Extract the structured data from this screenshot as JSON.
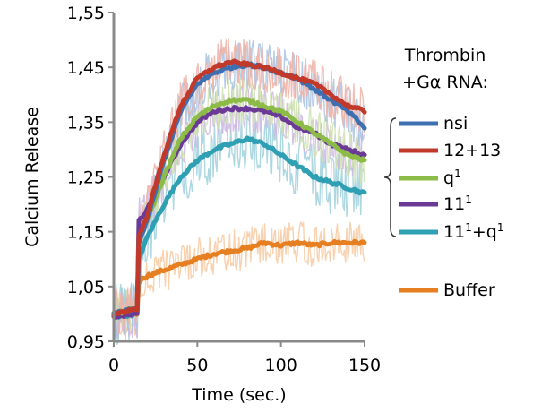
{
  "chart_data": {
    "type": "line",
    "xlabel": "Time (sec.)",
    "ylabel": "Calcium Release",
    "xlim": [
      0,
      150
    ],
    "ylim": [
      0.95,
      1.55
    ],
    "x_ticks": [
      {
        "value": 0,
        "label": "0"
      },
      {
        "value": 50,
        "label": "50"
      },
      {
        "value": 100,
        "label": "100"
      },
      {
        "value": 150,
        "label": "150"
      }
    ],
    "y_ticks": [
      {
        "value": 0.95,
        "label": "0,95"
      },
      {
        "value": 1.05,
        "label": "1,05"
      },
      {
        "value": 1.15,
        "label": "1,15"
      },
      {
        "value": 1.25,
        "label": "1,25"
      },
      {
        "value": 1.35,
        "label": "1,35"
      },
      {
        "value": 1.45,
        "label": "1,45"
      },
      {
        "value": 1.55,
        "label": "1,55"
      }
    ],
    "grid": false,
    "legend": {
      "title_line1": "Thrombin",
      "title_line2": "+Gα RNA:",
      "placement": "right",
      "bracketed_series": [
        "nsi",
        "12+13",
        "q1",
        "11",
        "11+q1"
      ]
    },
    "series": [
      {
        "name": "nsi",
        "label": "nsi",
        "label_sup": "",
        "color": "#3e6fb0",
        "band_color": "#a9c2e2",
        "x": [
          0,
          14,
          15,
          20,
          30,
          40,
          50,
          60,
          70,
          80,
          90,
          100,
          110,
          120,
          130,
          140,
          150
        ],
        "y": [
          1.0,
          1.01,
          1.13,
          1.17,
          1.28,
          1.37,
          1.42,
          1.44,
          1.45,
          1.455,
          1.45,
          1.44,
          1.43,
          1.41,
          1.39,
          1.37,
          1.34
        ],
        "noise": 0.035
      },
      {
        "name": "12+13",
        "label": "12+13",
        "label_sup": "",
        "color": "#c0392b",
        "band_color": "#f0b2a5",
        "x": [
          0,
          14,
          15,
          20,
          30,
          40,
          50,
          60,
          70,
          80,
          90,
          100,
          110,
          120,
          130,
          140,
          150
        ],
        "y": [
          1.0,
          1.01,
          1.14,
          1.18,
          1.29,
          1.38,
          1.43,
          1.45,
          1.46,
          1.455,
          1.45,
          1.44,
          1.43,
          1.42,
          1.4,
          1.38,
          1.37
        ],
        "noise": 0.035
      },
      {
        "name": "q1",
        "label": "q",
        "label_sup": "1",
        "color": "#8dbb48",
        "band_color": "#cfe3b0",
        "x": [
          0,
          14,
          15,
          20,
          30,
          40,
          50,
          60,
          70,
          80,
          90,
          100,
          110,
          120,
          130,
          140,
          150
        ],
        "y": [
          1.0,
          1.01,
          1.14,
          1.17,
          1.25,
          1.32,
          1.36,
          1.38,
          1.39,
          1.39,
          1.38,
          1.37,
          1.35,
          1.33,
          1.31,
          1.29,
          1.28
        ],
        "noise": 0.035
      },
      {
        "name": "11",
        "label": "11",
        "label_sup": "1",
        "color": "#6a3a96",
        "band_color": "#cdb7e3",
        "x": [
          0,
          14,
          15,
          20,
          30,
          40,
          50,
          60,
          70,
          80,
          90,
          100,
          110,
          120,
          130,
          140,
          150
        ],
        "y": [
          0.995,
          1.0,
          1.17,
          1.19,
          1.25,
          1.31,
          1.35,
          1.37,
          1.375,
          1.375,
          1.37,
          1.36,
          1.34,
          1.33,
          1.31,
          1.3,
          1.29
        ],
        "noise": 0.035
      },
      {
        "name": "11+q1",
        "label": "11",
        "label_sup": "1",
        "label_mid": "+q",
        "label_sup2": "1",
        "color": "#2f9fb4",
        "band_color": "#9fd0dc",
        "x": [
          0,
          14,
          15,
          20,
          30,
          40,
          50,
          60,
          70,
          80,
          90,
          100,
          110,
          120,
          130,
          140,
          150
        ],
        "y": [
          0.995,
          1.0,
          1.1,
          1.14,
          1.2,
          1.25,
          1.28,
          1.3,
          1.31,
          1.32,
          1.31,
          1.29,
          1.27,
          1.25,
          1.24,
          1.23,
          1.22
        ],
        "noise": 0.045
      },
      {
        "name": "Buffer",
        "label": "Buffer",
        "label_sup": "",
        "color": "#e67e22",
        "band_color": "#f7c9a0",
        "x": [
          0,
          14,
          15,
          20,
          30,
          40,
          50,
          60,
          70,
          80,
          90,
          100,
          110,
          120,
          130,
          140,
          150
        ],
        "y": [
          0.995,
          1.0,
          1.06,
          1.07,
          1.08,
          1.09,
          1.1,
          1.11,
          1.115,
          1.12,
          1.13,
          1.125,
          1.13,
          1.125,
          1.13,
          1.13,
          1.13
        ],
        "noise": 0.03
      }
    ]
  }
}
